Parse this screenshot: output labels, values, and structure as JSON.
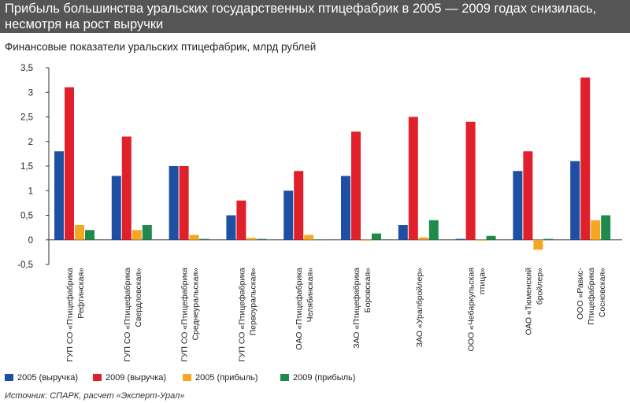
{
  "header": {
    "title": "Прибыль большинства уральских государственных птицефабрик в 2005 — 2009 годах снизилась, несмотря на рост выручки"
  },
  "subtitle": "Финансовые показатели уральских птицефабрик, млрд рублей",
  "source": "Источник: СПАРК, расчет «Эксперт-Урал»",
  "colors": {
    "header_bg": "#555555",
    "revenue_2005": "#1f4fa3",
    "revenue_2009": "#e0202b",
    "profit_2005": "#f5a623",
    "profit_2009": "#1f8a4c"
  },
  "chart_data": {
    "type": "bar",
    "ylim": [
      -0.5,
      3.5
    ],
    "yticks": [
      "3,5",
      "3",
      "2,5",
      "2",
      "1,5",
      "1",
      "0,5",
      "0",
      "-0,5"
    ],
    "ytick_values": [
      3.5,
      3,
      2.5,
      2,
      1.5,
      1,
      0.5,
      0,
      -0.5
    ],
    "grid": false,
    "legend_position": "bottom",
    "categories": [
      [
        "ГУП СО «Птицефабрика",
        "Рефтинская»"
      ],
      [
        "ГУП СО «Птицефабрика",
        "Свердловская»"
      ],
      [
        "ГУП СО «Птицефабрика",
        "Среднеуральская»"
      ],
      [
        "ГУП СО «Птицефабрика",
        "Первоуральская»"
      ],
      [
        "ОАО «Птицефабрика",
        "Челябинская»"
      ],
      [
        "ЗАО «Птицефабрика",
        "Боровская»"
      ],
      [
        "ЗАО «Уралбройлер»"
      ],
      [
        "ООО «Чебаркульская",
        "птица»"
      ],
      [
        "ОАО «Тюменский",
        "бройлер»"
      ],
      [
        "ООО «Равис-",
        "Птицефабрика",
        "Сосновская»"
      ]
    ],
    "series": [
      {
        "name": "2005 (выручка)",
        "color": "#1f4fa3",
        "values": [
          1.8,
          1.3,
          1.5,
          0.5,
          1.0,
          1.3,
          0.3,
          0.02,
          1.4,
          1.6
        ]
      },
      {
        "name": "2009 (выручка)",
        "color": "#e0202b",
        "values": [
          3.1,
          2.1,
          1.5,
          0.8,
          1.4,
          2.2,
          2.5,
          2.4,
          1.8,
          3.3
        ]
      },
      {
        "name": "2005 (прибыль)",
        "color": "#f5a623",
        "values": [
          0.3,
          0.2,
          0.1,
          0.04,
          0.1,
          0.0,
          0.05,
          0.0,
          -0.2,
          0.4
        ]
      },
      {
        "name": "2009 (прибыль)",
        "color": "#1f8a4c",
        "values": [
          0.2,
          0.3,
          0.02,
          0.02,
          0.01,
          0.13,
          0.4,
          0.08,
          0.02,
          0.5
        ]
      }
    ]
  }
}
